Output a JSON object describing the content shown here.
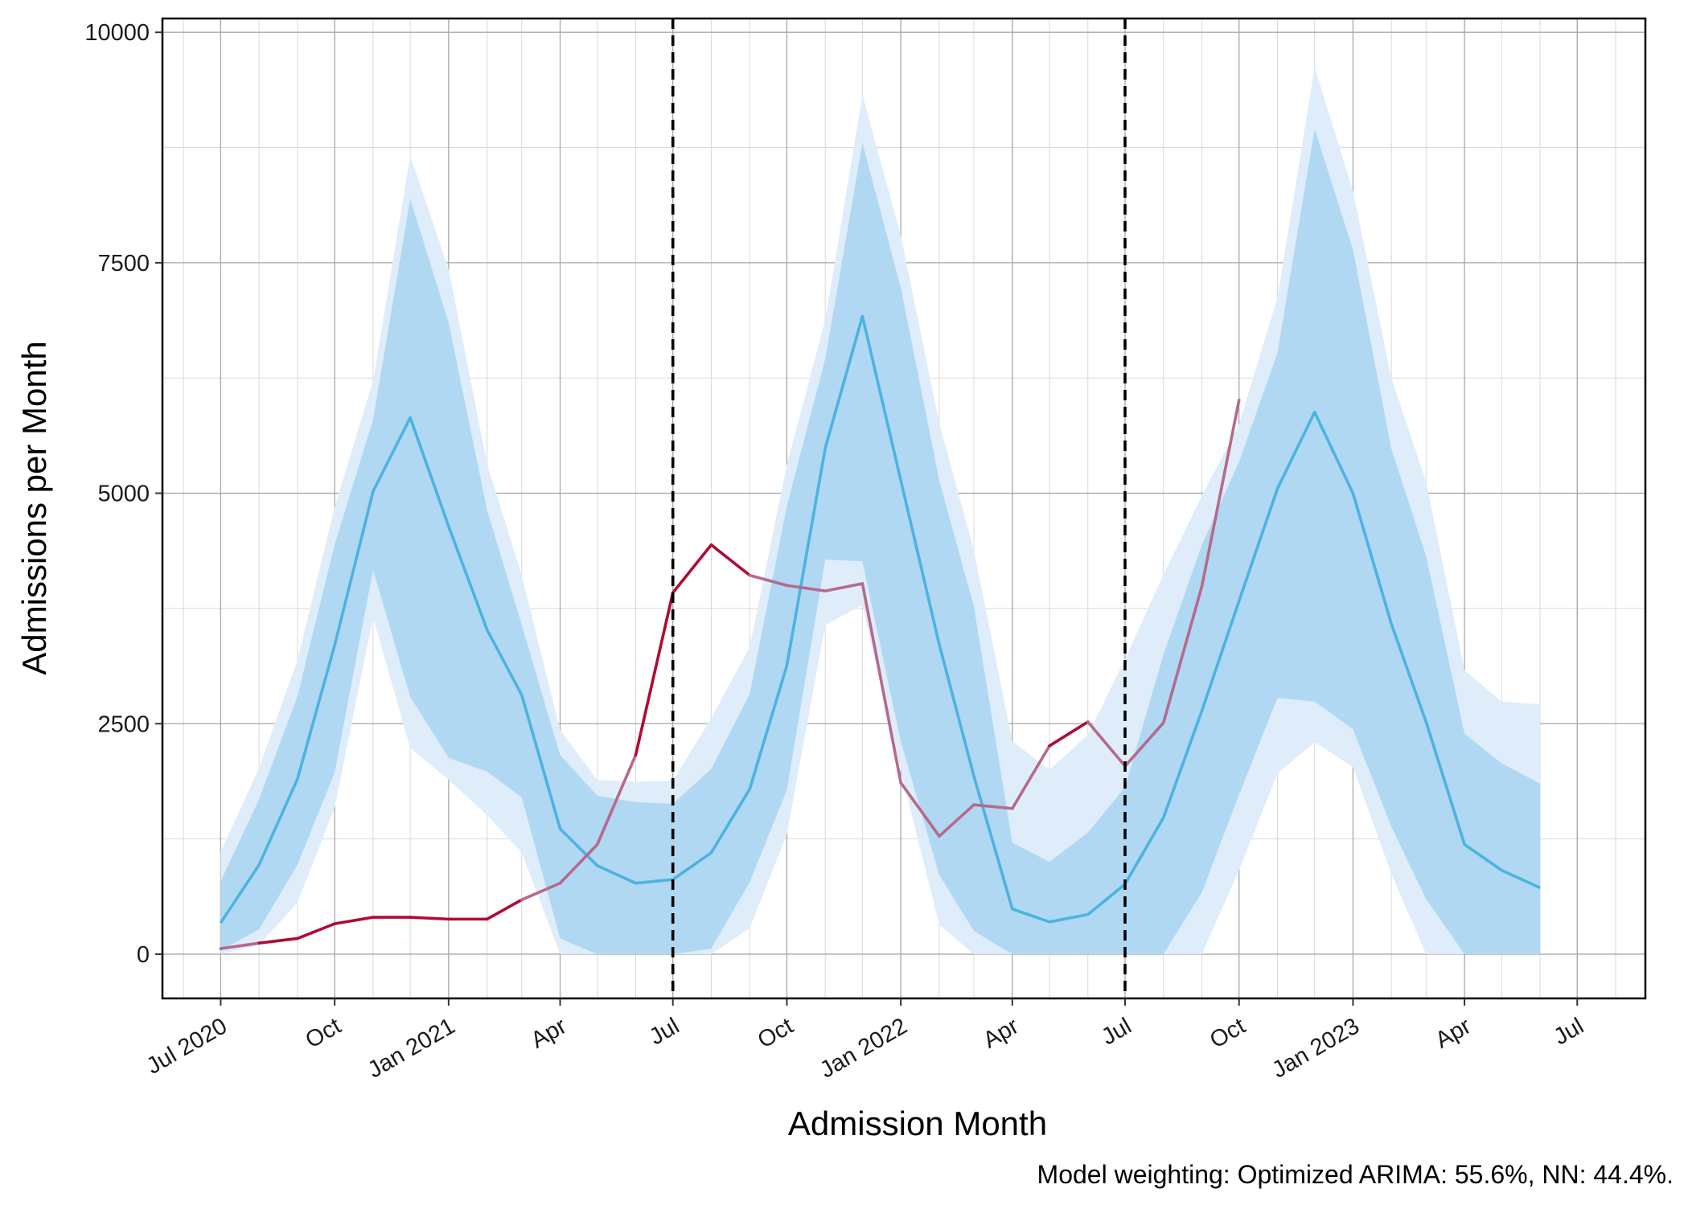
{
  "chart_data": {
    "type": "line",
    "title": "",
    "xlabel": "Admission Month",
    "ylabel": "Admissions per Month",
    "caption": "Model weighting: Optimized ARIMA: 55.6%, NN: 44.4%.",
    "xlim": [
      "2020-05-15",
      "2023-08-25"
    ],
    "ylim": [
      -480,
      10150
    ],
    "grid": true,
    "legend": "none",
    "x_ticks": [
      {
        "date": "2020-07-01",
        "label": "Jul 2020"
      },
      {
        "date": "2020-10-01",
        "label": "Oct"
      },
      {
        "date": "2021-01-01",
        "label": "Jan 2021"
      },
      {
        "date": "2021-04-01",
        "label": "Apr"
      },
      {
        "date": "2021-07-01",
        "label": "Jul"
      },
      {
        "date": "2021-10-01",
        "label": "Oct"
      },
      {
        "date": "2022-01-01",
        "label": "Jan 2022"
      },
      {
        "date": "2022-04-01",
        "label": "Apr"
      },
      {
        "date": "2022-07-01",
        "label": "Jul"
      },
      {
        "date": "2022-10-01",
        "label": "Oct"
      },
      {
        "date": "2023-01-01",
        "label": "Jan 2023"
      },
      {
        "date": "2023-04-01",
        "label": "Apr"
      },
      {
        "date": "2023-07-01",
        "label": "Jul"
      }
    ],
    "y_ticks": [
      {
        "value": 0,
        "label": "0"
      },
      {
        "value": 2500,
        "label": "2500"
      },
      {
        "value": 5000,
        "label": "5000"
      },
      {
        "value": 7500,
        "label": "7500"
      },
      {
        "value": 10000,
        "label": "10000"
      }
    ],
    "vlines": [
      "2021-07-01",
      "2022-07-01"
    ],
    "colors": {
      "forecast": "#4cb3e0",
      "band_inner": "#b0d8f2",
      "band_outer": "#deedf9",
      "observed": "#b00a35",
      "observed_overlap": "#b56a8c",
      "vline": "#000000"
    },
    "series": [
      {
        "role": "forecast",
        "x": [
          "2020-07",
          "2020-08",
          "2020-09",
          "2020-10",
          "2020-11",
          "2020-12",
          "2021-01",
          "2021-02",
          "2021-03",
          "2021-04",
          "2021-05",
          "2021-06",
          "2021-07",
          "2021-08",
          "2021-09",
          "2021-10",
          "2021-11",
          "2021-12",
          "2022-01",
          "2022-02",
          "2022-03",
          "2022-04",
          "2022-05",
          "2022-06",
          "2022-07",
          "2022-08",
          "2022-09",
          "2022-10",
          "2022-11",
          "2022-12",
          "2023-01",
          "2023-02",
          "2023-03",
          "2023-04",
          "2023-05",
          "2023-06"
        ],
        "values": [
          340,
          970,
          1900,
          3350,
          5020,
          5820,
          4640,
          3520,
          2810,
          1360,
          960,
          770,
          810,
          1100,
          1790,
          3130,
          5490,
          6920,
          5140,
          3360,
          1930,
          490,
          350,
          430,
          760,
          1480,
          2640,
          3830,
          5050,
          5880,
          5000,
          3580,
          2520,
          1190,
          910,
          720
        ],
        "inner_lo": [
          40,
          270,
          970,
          1970,
          4170,
          2790,
          2130,
          1980,
          1700,
          170,
          0,
          0,
          0,
          60,
          780,
          1780,
          4280,
          4260,
          2310,
          860,
          250,
          0,
          0,
          0,
          0,
          0,
          670,
          1730,
          2780,
          2740,
          2440,
          1380,
          600,
          0,
          0,
          0
        ],
        "inner_hi": [
          790,
          1680,
          2800,
          4440,
          5800,
          8190,
          6850,
          4820,
          3570,
          2160,
          1720,
          1650,
          1630,
          2010,
          2820,
          4860,
          6460,
          8800,
          7230,
          5140,
          3770,
          1210,
          1000,
          1320,
          1810,
          3250,
          4440,
          5340,
          6520,
          8950,
          7640,
          5480,
          4320,
          2390,
          2070,
          1850
        ],
        "outer_lo": [
          0,
          100,
          560,
          1590,
          3650,
          2240,
          1890,
          1510,
          1100,
          0,
          0,
          0,
          0,
          0,
          280,
          1300,
          3570,
          3790,
          1990,
          320,
          0,
          0,
          0,
          0,
          0,
          0,
          0,
          910,
          1960,
          2300,
          2030,
          870,
          0,
          0,
          0,
          0
        ],
        "outer_hi": [
          1110,
          2020,
          3190,
          4850,
          6220,
          8660,
          7430,
          5320,
          4110,
          2430,
          1890,
          1870,
          1880,
          2560,
          3330,
          5310,
          6880,
          9320,
          7800,
          5760,
          4380,
          2310,
          2000,
          2380,
          3200,
          4120,
          4970,
          5750,
          7120,
          9620,
          8280,
          6250,
          5130,
          3080,
          2740,
          2710
        ]
      },
      {
        "role": "observed",
        "x": [
          "2020-07",
          "2020-08",
          "2020-09",
          "2020-10",
          "2020-11",
          "2020-12",
          "2021-01",
          "2021-02",
          "2021-03",
          "2021-04",
          "2021-05",
          "2021-06",
          "2021-07",
          "2021-08",
          "2021-09",
          "2021-10",
          "2021-11",
          "2021-12",
          "2022-01",
          "2022-02",
          "2022-03",
          "2022-04",
          "2022-05",
          "2022-06",
          "2022-07",
          "2022-08",
          "2022-09",
          "2022-10"
        ],
        "values": [
          60,
          120,
          170,
          330,
          400,
          400,
          380,
          380,
          590,
          770,
          1190,
          2160,
          3920,
          4440,
          4110,
          4000,
          3940,
          4020,
          1860,
          1280,
          1620,
          1580,
          2260,
          2520,
          2040,
          2510,
          3990,
          6010
        ]
      }
    ]
  }
}
